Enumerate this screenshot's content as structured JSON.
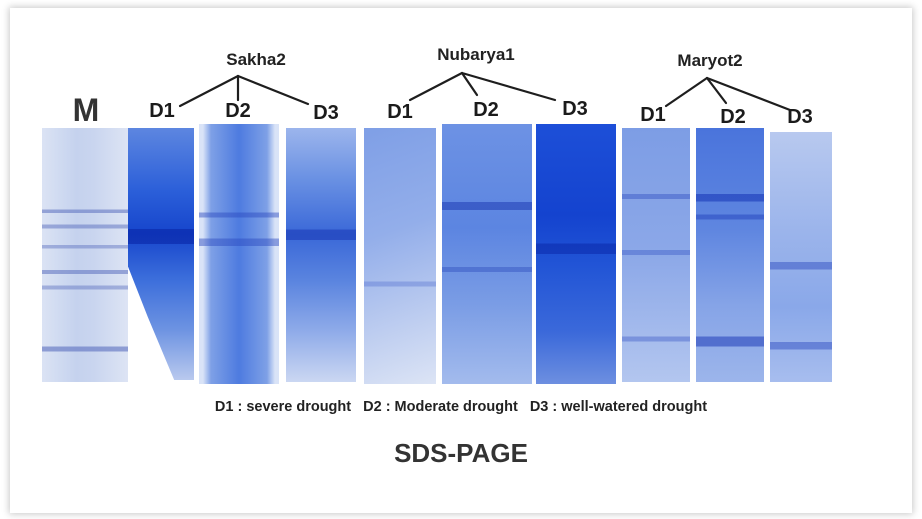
{
  "marker_label": "M",
  "groups": [
    {
      "name": "Sakha2",
      "lanes": [
        "D1",
        "D2",
        "D3"
      ]
    },
    {
      "name": "Nubarya1",
      "lanes": [
        "D1",
        "D2",
        "D3"
      ]
    },
    {
      "name": "Maryot2",
      "lanes": [
        "D1",
        "D2",
        "D3"
      ]
    }
  ],
  "legend": {
    "d1": "D1 : severe drought",
    "d2": "D2 : Moderate drought",
    "d3": "D3 : well-watered drought"
  },
  "title": "SDS-PAGE",
  "colors": {
    "gel_dark": "#1a4fd6",
    "gel_light": "#c9d6f2",
    "text": "#222222"
  }
}
